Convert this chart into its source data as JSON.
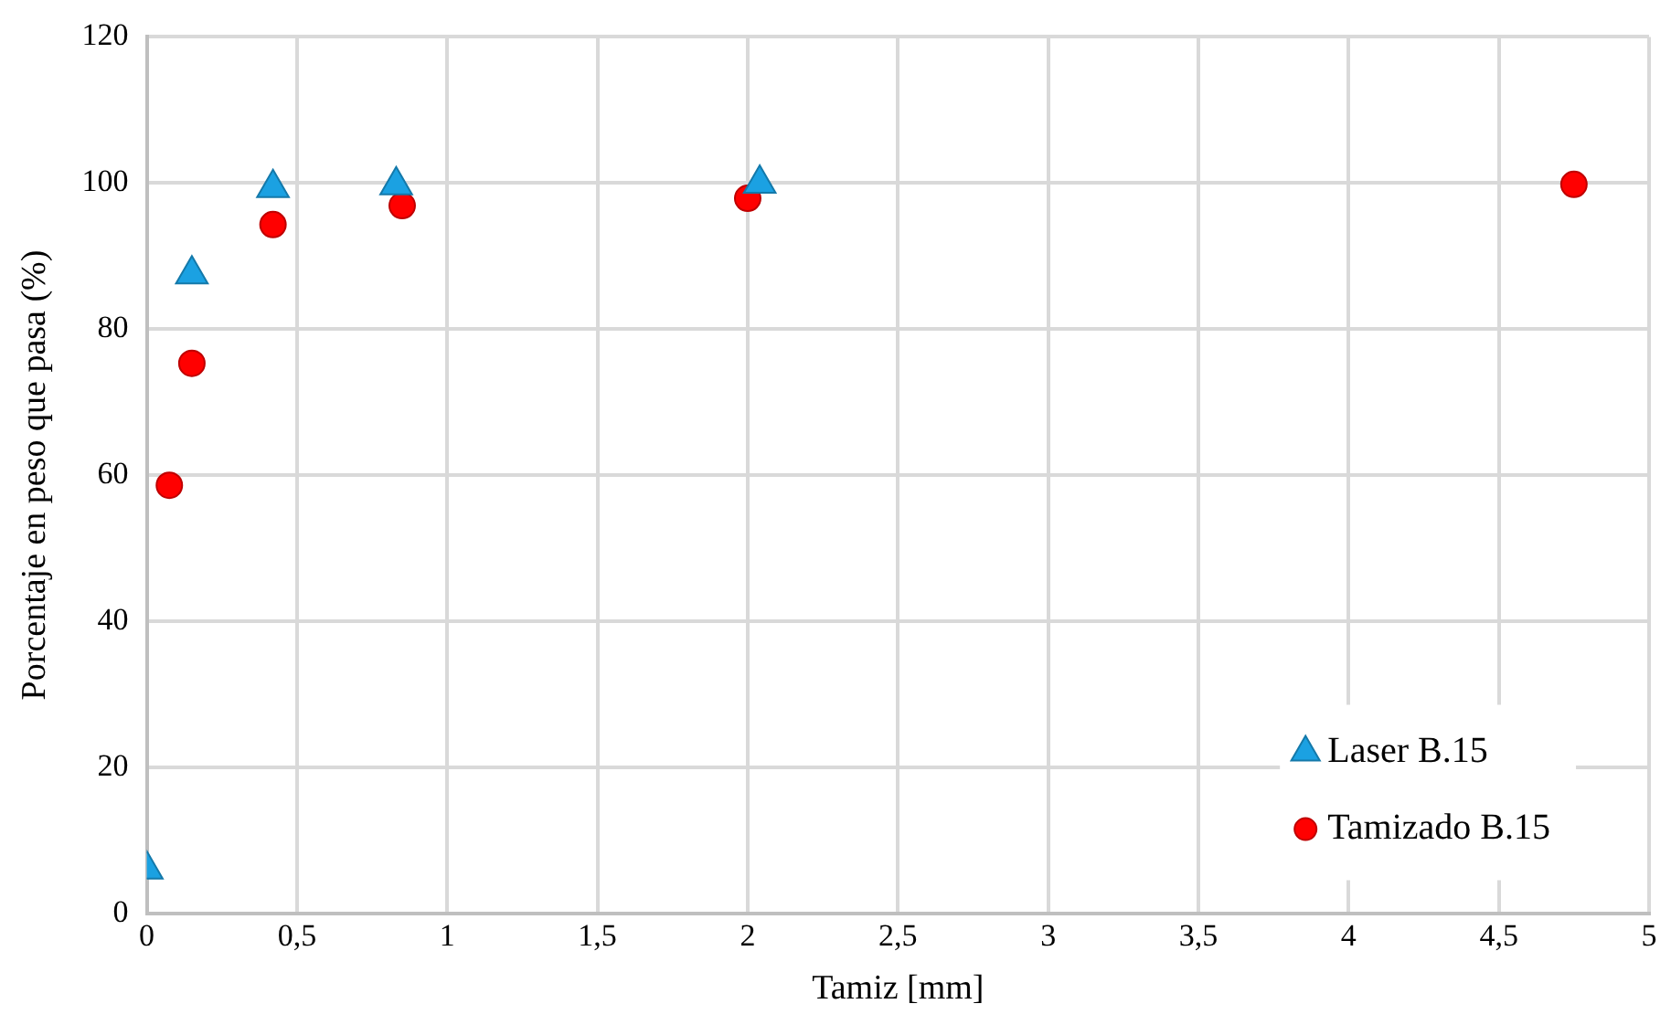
{
  "chart_data": {
    "type": "scatter",
    "xlabel": "Tamiz [mm]",
    "ylabel": "Porcentaje en peso que pasa (%)",
    "xlim": [
      0,
      5
    ],
    "xticks": [
      0,
      {
        "value": 0.5,
        "label": "0,5"
      },
      1,
      {
        "value": 1.5,
        "label": "1,5"
      },
      2,
      {
        "value": 2.5,
        "label": "2,5"
      },
      3,
      {
        "value": 3.5,
        "label": "3,5"
      },
      4,
      {
        "value": 4.5,
        "label": "4,5"
      },
      5
    ],
    "ylim": [
      0,
      120
    ],
    "yticks": [
      0,
      20,
      40,
      60,
      80,
      100,
      120
    ],
    "grid": true,
    "legend": "bottom right",
    "series": [
      {
        "name": "Laser B.15",
        "color": "#1ba1e2",
        "marker": "triangle",
        "x": [
          0,
          0.15,
          0.42,
          0.83,
          2.04
        ],
        "values": [
          6,
          87.5,
          99.3,
          99.7,
          99.9
        ]
      },
      {
        "name": "Tamizado B.15",
        "color": "#ff0000",
        "marker": "circle",
        "x": [
          0.075,
          0.15,
          0.42,
          0.85,
          2.0,
          4.75
        ],
        "values": [
          58.6,
          75.3,
          94.3,
          96.9,
          97.9,
          99.8
        ]
      }
    ]
  }
}
